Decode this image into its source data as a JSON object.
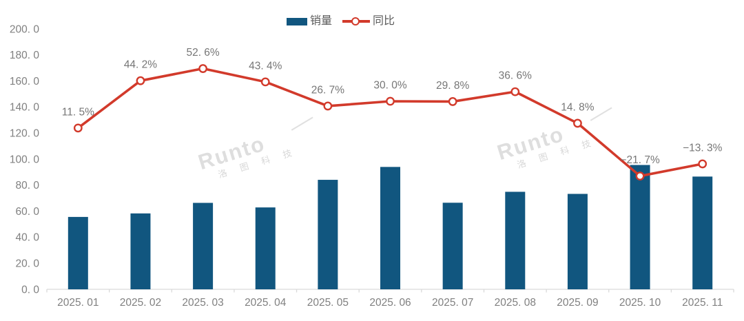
{
  "legend": {
    "sales_label": "销量",
    "yoy_label": "同比"
  },
  "watermark": {
    "brand": "Runto",
    "subtext": "洛 图 科 技"
  },
  "colors": {
    "bar": "#11567f",
    "line": "#d23a2b",
    "marker_fill": "#ffffff",
    "axis": "#d9d9d9",
    "tick_label": "#808080",
    "data_label": "#767676",
    "legend_text": "#595959",
    "background": "#ffffff",
    "watermark": "#dcdcdc"
  },
  "chart_data": {
    "type": "combo",
    "title": "",
    "categories": [
      "2025.01",
      "2025.02",
      "2025.03",
      "2025.04",
      "2025.05",
      "2025.06",
      "2025.07",
      "2025.08",
      "2025.09",
      "2025.10",
      "2025.11"
    ],
    "x_tick_labels": [
      "2025. 01",
      "2025. 02",
      "2025. 03",
      "2025. 04",
      "2025. 05",
      "2025. 06",
      "2025. 07",
      "2025. 08",
      "2025. 09",
      "2025. 10",
      "2025. 11"
    ],
    "series": [
      {
        "name": "销量",
        "type": "bar",
        "axis": "primary",
        "values": [
          55.6,
          58.3,
          66.4,
          62.9,
          84.1,
          94.0,
          66.5,
          74.9,
          73.3,
          95.5,
          86.6
        ]
      },
      {
        "name": "同比",
        "type": "line",
        "axis": "secondary",
        "unit": "%",
        "values": [
          11.5,
          44.2,
          52.6,
          43.4,
          26.7,
          30.0,
          29.8,
          36.6,
          14.8,
          -21.7,
          -13.3
        ],
        "data_labels": [
          "11. 5%",
          "44. 2%",
          "52. 6%",
          "43. 4%",
          "26. 7%",
          "30. 0%",
          "29. 8%",
          "36. 6%",
          "14. 8%",
          "−21. 7%",
          "−13. 3%"
        ]
      }
    ],
    "primary_axis": {
      "min": 0,
      "max": 200,
      "step": 20,
      "tick_labels": [
        "0. 0",
        "20. 0",
        "40. 0",
        "60. 0",
        "80. 0",
        "100. 0",
        "120. 0",
        "140. 0",
        "160. 0",
        "180. 0",
        "200. 0"
      ]
    },
    "secondary_axis": {
      "min": -100,
      "max": 80,
      "visible": false
    },
    "grid": false,
    "legend_position": "top-center"
  }
}
